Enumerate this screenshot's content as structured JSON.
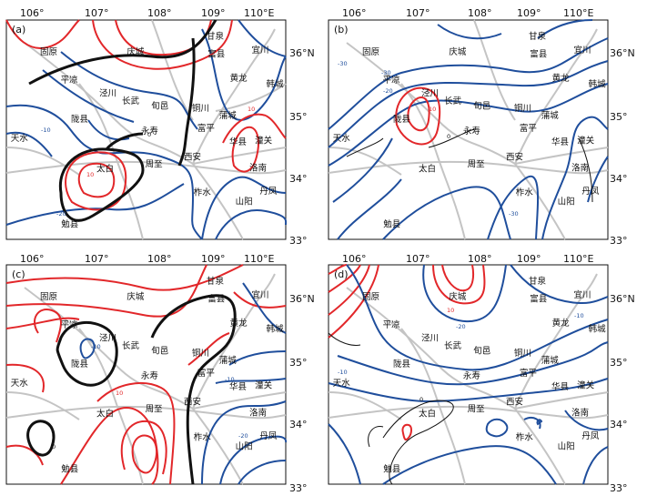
{
  "figure": {
    "lon_ticks": [
      "106°",
      "107°",
      "108°",
      "109°",
      "110°E"
    ],
    "lat_ticks_right": [
      "36°N",
      "35°",
      "34°",
      "33°"
    ],
    "colors": {
      "positive": "#e2272a",
      "negative": "#1f4e9c",
      "zero": "#111111",
      "roads": "#c4c4c4"
    },
    "cities": [
      {
        "name": "甘泉",
        "lon": 109.35,
        "lat": 36.28
      },
      {
        "name": "宜川",
        "lon": 110.18,
        "lat": 36.05
      },
      {
        "name": "富县",
        "lon": 109.37,
        "lat": 35.98
      },
      {
        "name": "庆城",
        "lon": 107.88,
        "lat": 36.02
      },
      {
        "name": "固原",
        "lon": 106.28,
        "lat": 36.02
      },
      {
        "name": "黄龙",
        "lon": 109.78,
        "lat": 35.58
      },
      {
        "name": "韩城",
        "lon": 110.45,
        "lat": 35.48
      },
      {
        "name": "平凉",
        "lon": 106.66,
        "lat": 35.55
      },
      {
        "name": "泾川",
        "lon": 107.37,
        "lat": 35.33
      },
      {
        "name": "长武",
        "lon": 107.79,
        "lat": 35.2
      },
      {
        "name": "旬邑",
        "lon": 108.33,
        "lat": 35.12
      },
      {
        "name": "铜川",
        "lon": 109.08,
        "lat": 35.08
      },
      {
        "name": "蒲城",
        "lon": 109.58,
        "lat": 34.96
      },
      {
        "name": "陇县",
        "lon": 106.85,
        "lat": 34.9
      },
      {
        "name": "永寿",
        "lon": 108.14,
        "lat": 34.7
      },
      {
        "name": "富平",
        "lon": 109.18,
        "lat": 34.75
      },
      {
        "name": "华县",
        "lon": 109.77,
        "lat": 34.52
      },
      {
        "name": "潼关",
        "lon": 110.24,
        "lat": 34.54
      },
      {
        "name": "天水",
        "lon": 105.74,
        "lat": 34.58
      },
      {
        "name": "西安",
        "lon": 108.93,
        "lat": 34.27
      },
      {
        "name": "周至",
        "lon": 108.22,
        "lat": 34.15
      },
      {
        "name": "太白",
        "lon": 107.32,
        "lat": 34.07
      },
      {
        "name": "洛南",
        "lon": 110.14,
        "lat": 34.09
      },
      {
        "name": "柞水",
        "lon": 109.11,
        "lat": 33.68
      },
      {
        "name": "丹凤",
        "lon": 110.33,
        "lat": 33.7
      },
      {
        "name": "山阳",
        "lon": 109.88,
        "lat": 33.53
      },
      {
        "name": "勉县",
        "lon": 106.67,
        "lat": 33.15
      }
    ]
  },
  "panels": [
    {
      "label": "(a)",
      "labels": {
        "pos": "10",
        "neg": "-10",
        "neg2": "-20",
        "zero": "0"
      }
    },
    {
      "label": "(b)",
      "labels": {
        "pos": "10",
        "neg": "-10",
        "neg2": "-20",
        "neg3": "-30",
        "zero": "0"
      }
    },
    {
      "label": "(c)",
      "labels": {
        "pos": "10",
        "neg": "-10",
        "neg2": "-20",
        "zero": "0"
      }
    },
    {
      "label": "(d)",
      "labels": {
        "pos": "10",
        "neg": "-10",
        "neg2": "-20",
        "zero": "0"
      }
    }
  ]
}
